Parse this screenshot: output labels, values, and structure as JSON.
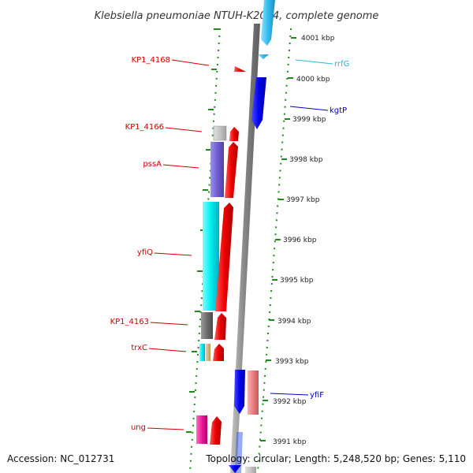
{
  "title": "Klebsiella pneumoniae NTUH-K2044, complete genome",
  "footer": {
    "accession": "Accession: NC_012731",
    "topology": "Topology: circular; Length: 5,248,520 bp; Genes: 5,110"
  },
  "colors": {
    "ticks": "#1e8a1e",
    "backbone": "#8a8a8a",
    "forward_label": "#cc0000",
    "reverse_label": "#0000cc",
    "rna_label": "#22b8dd"
  },
  "position_labels": [
    "4001 kbp",
    "4000 kbp",
    "3999 kbp",
    "3998 kbp",
    "3997 kbp",
    "3996 kbp",
    "3995 kbp",
    "3994 kbp",
    "3993 kbp",
    "3992 kbp",
    "3991 kbp"
  ],
  "left_gene_labels": [
    {
      "name": "KP1_4168"
    },
    {
      "name": "KP1_4166"
    },
    {
      "name": "pssA"
    },
    {
      "name": "yfiQ"
    },
    {
      "name": "KP1_4163"
    },
    {
      "name": "trxC"
    },
    {
      "name": "ung"
    }
  ],
  "right_gene_labels": [
    {
      "name": "rrfG",
      "color": "#22b8dd"
    },
    {
      "name": "kgtP",
      "color": "#0000cc"
    },
    {
      "name": "yfiF",
      "color": "#0000cc"
    }
  ]
}
